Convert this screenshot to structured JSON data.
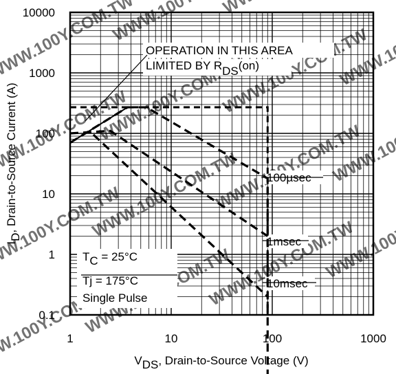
{
  "chart_data": {
    "type": "line",
    "x_scale": "log",
    "y_scale": "log",
    "xlim": [
      1,
      1000
    ],
    "ylim": [
      0.1,
      10000
    ],
    "grid": true,
    "x_ticks": [
      {
        "value": 1,
        "label": "1"
      },
      {
        "value": 10,
        "label": "10"
      },
      {
        "value": 100,
        "label": "100"
      },
      {
        "value": 1000,
        "label": "1000"
      }
    ],
    "y_ticks": [
      {
        "value": 0.1,
        "label": "0.1"
      },
      {
        "value": 1,
        "label": "1"
      },
      {
        "value": 10,
        "label": "10"
      },
      {
        "value": 100,
        "label": "100"
      },
      {
        "value": 1000,
        "label": "1000"
      },
      {
        "value": 10000,
        "label": "10000"
      }
    ],
    "xlabel": {
      "main": "V",
      "sub": "DS",
      "rest": ", Drain-to-Source Voltage (V)"
    },
    "ylabel": {
      "main": "I",
      "sub": "D",
      "rest": ",  Drain-to-Source Current (A)"
    },
    "rds_limit_line": {
      "x": [
        1,
        3.7
      ],
      "y": [
        70,
        270
      ]
    },
    "series": [
      {
        "name": "100µsec",
        "x": [
          1,
          3.7,
          5.7,
          90,
          90
        ],
        "y": [
          70,
          270,
          270,
          18,
          0.01
        ]
      },
      {
        "name": "1msec",
        "x": [
          1,
          2.5,
          90
        ],
        "y": [
          100,
          110,
          2
        ]
      },
      {
        "name": "10msec",
        "x": [
          1.7,
          90
        ],
        "y": [
          95,
          0.2
        ]
      }
    ],
    "current_limit_box": {
      "x": [
        1,
        90,
        90
      ],
      "y": [
        270,
        270,
        0.1
      ]
    },
    "annotations": {
      "rds_line1": "OPERATION IN THIS AREA",
      "rds_line2_main": "LIMITED BY R",
      "rds_line2_sub": "DS",
      "rds_line2_rest": "(on)",
      "tc_main": "T",
      "tc_sub": "C",
      "tc_rest": " = 25°C",
      "tj": "Tj = 175°C",
      "pulse": "Single Pulse"
    },
    "watermark": "WWW.100Y.COM.TW"
  }
}
